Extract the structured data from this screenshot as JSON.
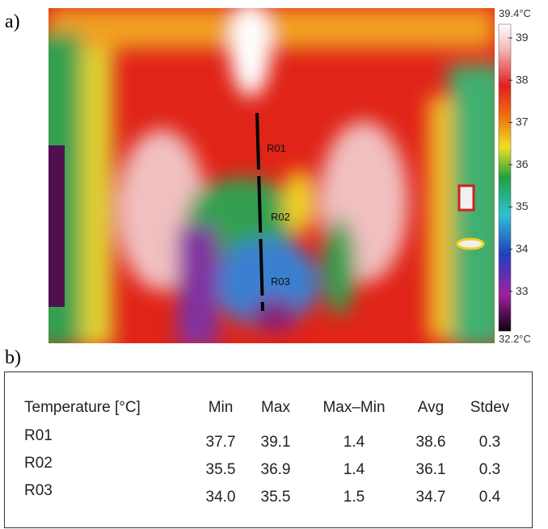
{
  "panel_a": {
    "label": "a)",
    "regions": [
      "R01",
      "R02",
      "R03"
    ],
    "colorbar": {
      "max_label": "39.4°C",
      "min_label": "32.2°C",
      "ticks": [
        "39",
        "38",
        "37",
        "36",
        "35",
        "34",
        "33"
      ]
    }
  },
  "panel_b": {
    "label": "b)",
    "table": {
      "header": [
        "Temperature [°C]",
        "Min",
        "Max",
        "Max–Min",
        "Avg",
        "Stdev"
      ],
      "rows": [
        [
          "R01",
          "37.7",
          "39.1",
          "1.4",
          "38.6",
          "0.3"
        ],
        [
          "R02",
          "35.5",
          "36.9",
          "1.4",
          "36.1",
          "0.3"
        ],
        [
          "R03",
          "34.0",
          "35.5",
          "1.5",
          "34.7",
          "0.4"
        ]
      ]
    }
  }
}
